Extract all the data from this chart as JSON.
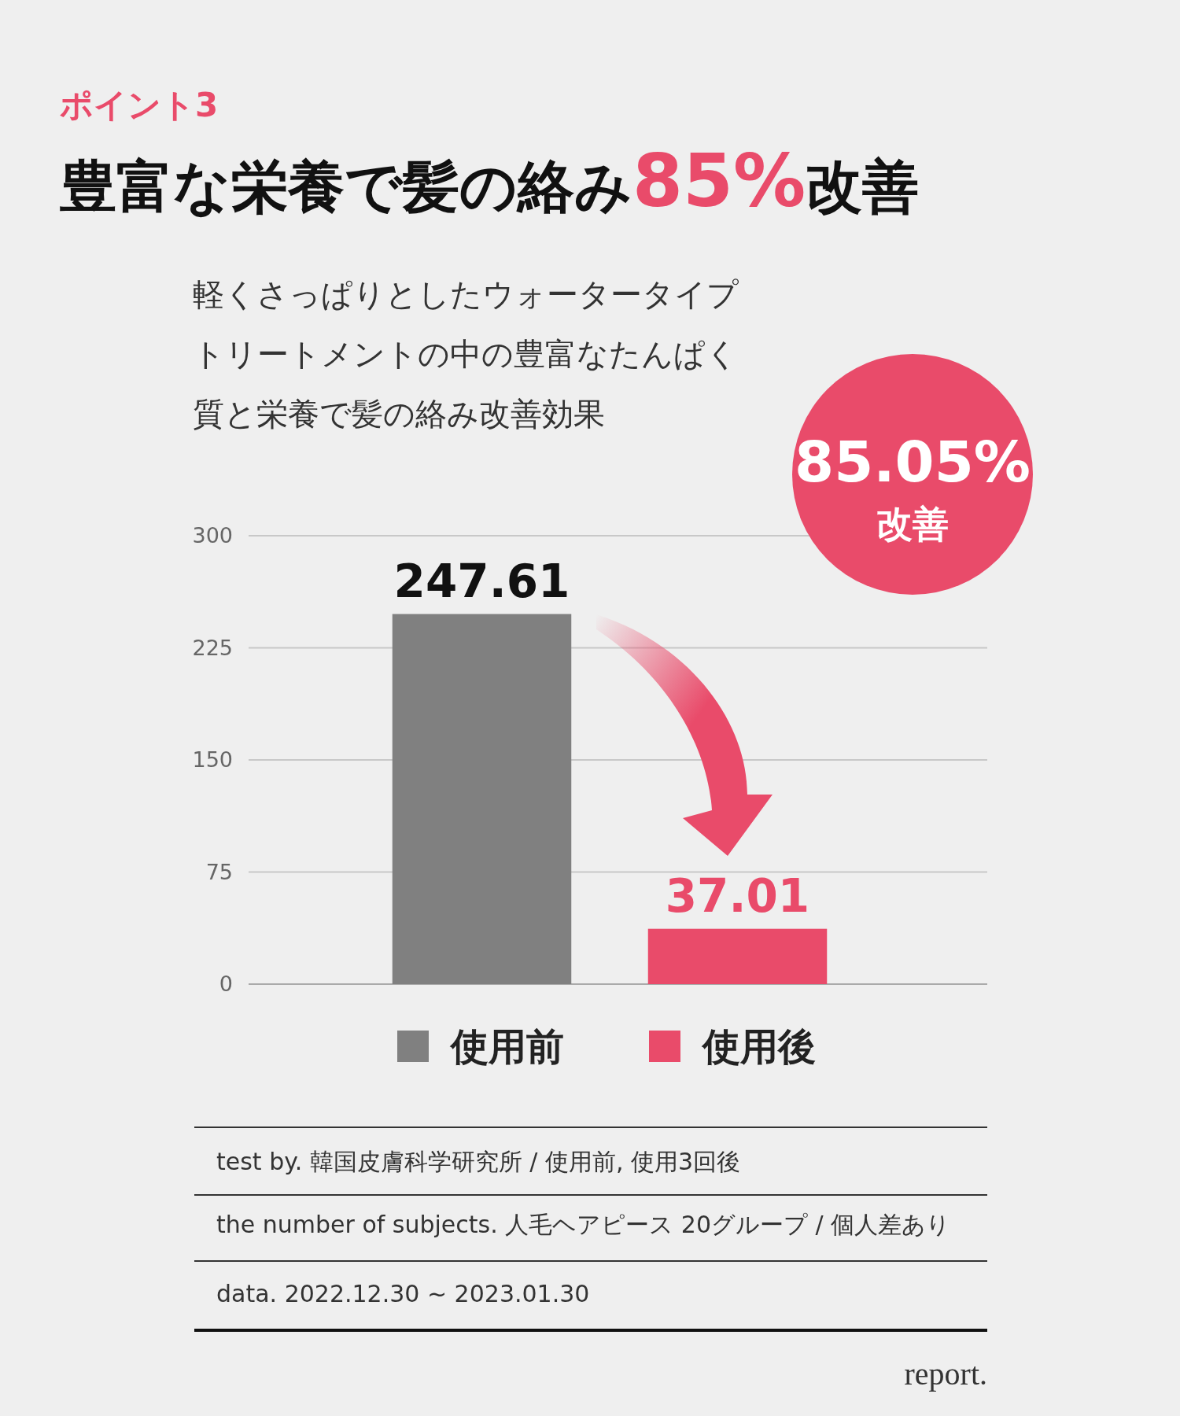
{
  "chart_data": {
    "type": "bar",
    "title": "豊富な栄養で髪の絡み85%改善",
    "subtitle": "軽くさっぱりとしたウォータータイプトリートメントの中の豊富なたんぱく質と栄養で髪の絡み改善効果",
    "annotations": [
      "ポイント3",
      "85.05%",
      "改善",
      "test by.  韓国皮膚科学研究所 / 使用前, 使用3回後",
      "the number of subjects.  人毛ヘアピース 20グループ / 個人差あり",
      "data.  2022.12.30 ~ 2023.01.30",
      "report."
    ],
    "categories": [
      null,
      null
    ],
    "series": [
      {
        "name": "使用前",
        "color": "#808080",
        "values": [
          247.61,
          null
        ]
      },
      {
        "name": "使用後",
        "color": "#e94b6a",
        "values": [
          null,
          37.01
        ]
      }
    ],
    "ylim": [
      0,
      300
    ],
    "yticks": [
      0,
      75,
      150,
      225,
      300
    ],
    "grid": "y",
    "legend": "bottom",
    "data_labels": true
  }
}
